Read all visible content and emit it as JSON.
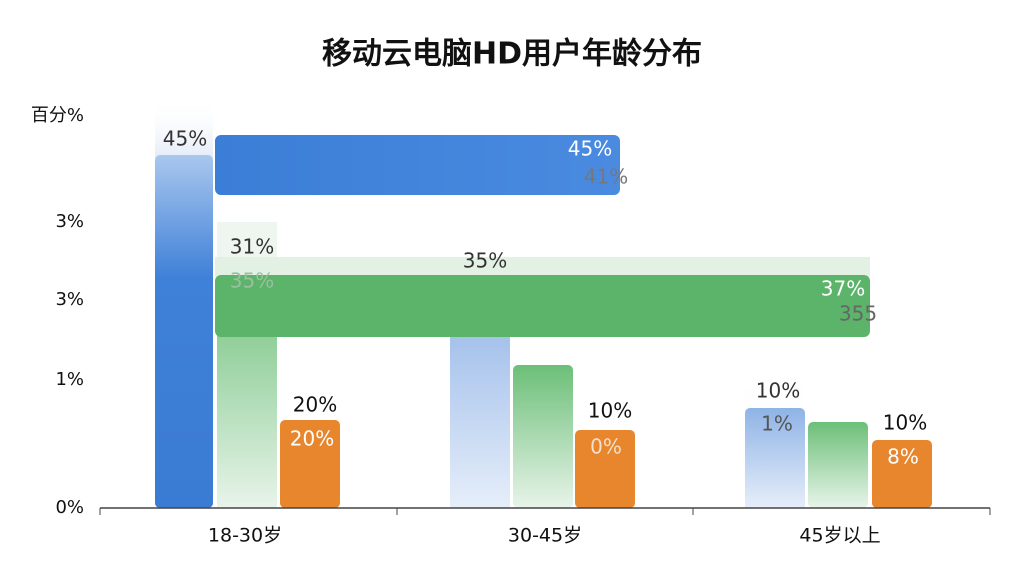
{
  "header": {
    "title": "移动云电脑HD用户年龄分布"
  },
  "y_axis": {
    "labels": [
      "百分%",
      "3%",
      "3%",
      "1%",
      "0%"
    ]
  },
  "x_axis": {
    "categories": [
      "18-30岁",
      "30-45岁",
      "45岁以上"
    ]
  },
  "bar_labels": [
    "45%",
    "45%",
    "41%",
    "31%",
    "35%",
    "35%",
    "37%",
    "355",
    "20%",
    "20%",
    "10%",
    "0%",
    "10%",
    "1%",
    "10%",
    "8%"
  ]
}
